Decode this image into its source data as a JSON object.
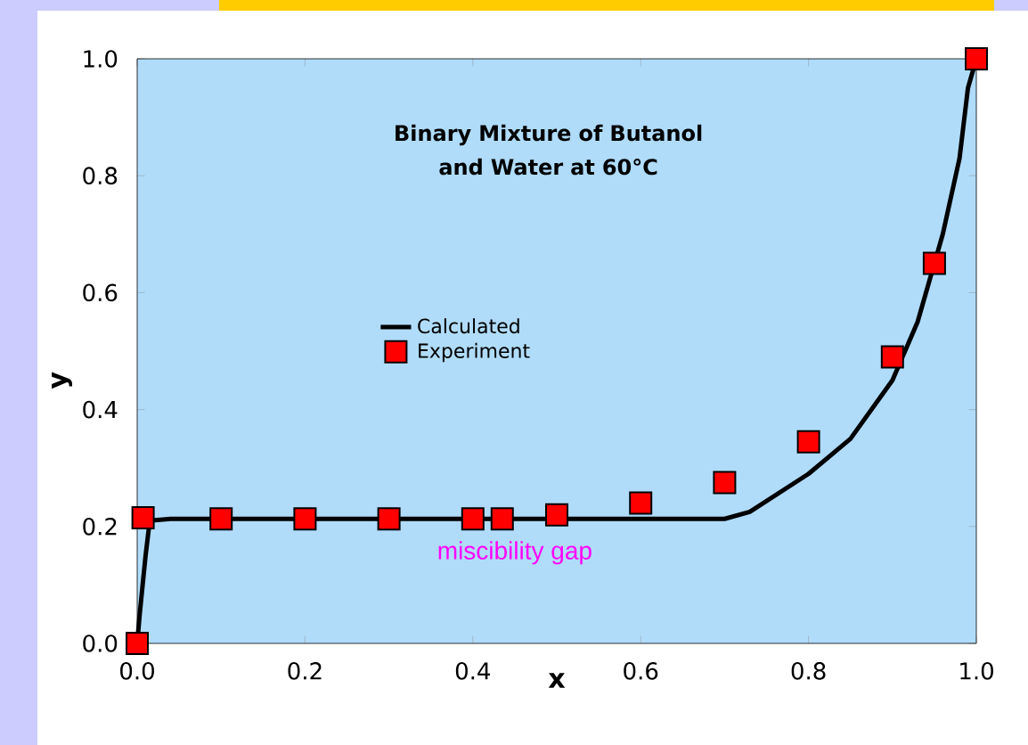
{
  "chart_data": {
    "type": "line",
    "title": "Binary Mixture of Butanol and Water at 60°C",
    "xlabel": "x",
    "ylabel": "y",
    "xlim": [
      0,
      1
    ],
    "ylim": [
      0,
      1
    ],
    "xticks": [
      {
        "value": 0,
        "label": "0.0"
      },
      {
        "value": 0.2,
        "label": "0.2"
      },
      {
        "value": 0.4,
        "label": "0.4"
      },
      {
        "value": 0.6,
        "label": "0.6"
      },
      {
        "value": 0.8,
        "label": "0.8"
      },
      {
        "value": 1,
        "label": "1.0"
      }
    ],
    "yticks": [
      {
        "value": 0,
        "label": "0.0"
      },
      {
        "value": 0.2,
        "label": "0.2"
      },
      {
        "value": 0.4,
        "label": "0.4"
      },
      {
        "value": 0.6,
        "label": "0.6"
      },
      {
        "value": 0.8,
        "label": "0.8"
      },
      {
        "value": 1,
        "label": "1.0"
      }
    ],
    "series": [
      {
        "name": "Calculated",
        "color": "#000000",
        "marker": "none",
        "line_style": "solid",
        "x": [
          0,
          0.003,
          0.01,
          0.015,
          0.04,
          0.7,
          0.73,
          0.8,
          0.85,
          0.9,
          0.93,
          0.96,
          0.98,
          0.99,
          1.0
        ],
        "values": [
          0,
          0.05,
          0.15,
          0.21,
          0.213,
          0.213,
          0.225,
          0.29,
          0.35,
          0.45,
          0.55,
          0.7,
          0.83,
          0.95,
          1.0
        ]
      },
      {
        "name": "Experiment",
        "type": "scatter",
        "color": "#ff0000",
        "marker": "square",
        "x": [
          0,
          0.007,
          0.1,
          0.2,
          0.3,
          0.4,
          0.435,
          0.5,
          0.6,
          0.7,
          0.8,
          0.9,
          0.95,
          1.0
        ],
        "values": [
          0,
          0.215,
          0.213,
          0.213,
          0.213,
          0.213,
          0.213,
          0.22,
          0.24,
          0.275,
          0.345,
          0.49,
          0.65,
          1.0
        ]
      }
    ],
    "annotations": [
      "miscibility gap"
    ],
    "legend": "center",
    "grid": false
  }
}
